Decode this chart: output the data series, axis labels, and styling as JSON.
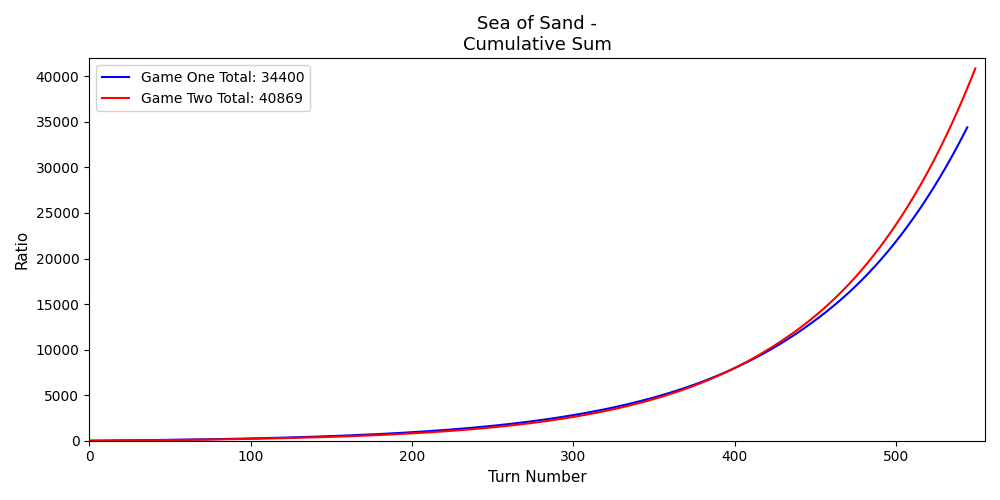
{
  "title": "Sea of Sand -\nCumulative Sum",
  "xlabel": "Turn Number",
  "ylabel": "Ratio",
  "game_one_label": "Game One Total: 34400",
  "game_two_label": "Game Two Total: 40869",
  "game_one_color": "blue",
  "game_two_color": "red",
  "game_one_total": 34400,
  "game_two_total": 40869,
  "game_one_turns": 545,
  "game_two_turns": 550,
  "figsize": [
    10,
    5
  ],
  "dpi": 100
}
